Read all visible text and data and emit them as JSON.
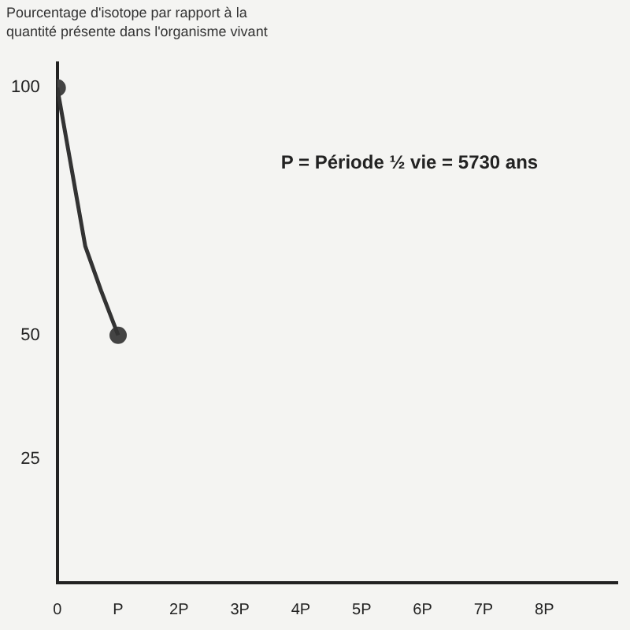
{
  "chart_data": {
    "type": "line",
    "ylabel": "Pourcentage d'isotope par rapport à la quantité présente dans l'organisme vivant",
    "annotations": [
      "P = Période ½ vie = 5730 ans"
    ],
    "xlim": [
      0,
      9.2
    ],
    "xticks": [
      {
        "value": 0,
        "label": "0"
      },
      {
        "value": 1,
        "label": "P"
      },
      {
        "value": 2,
        "label": "2P"
      },
      {
        "value": 3,
        "label": "3P"
      },
      {
        "value": 4,
        "label": "4P"
      },
      {
        "value": 5,
        "label": "5P"
      },
      {
        "value": 6,
        "label": "6P"
      },
      {
        "value": 7,
        "label": "7P"
      },
      {
        "value": 8,
        "label": "8P"
      }
    ],
    "ylim": [
      0,
      105
    ],
    "yticks": [
      25,
      50,
      100
    ],
    "grid": false,
    "legend": false,
    "series": [
      {
        "color": "#333333",
        "x": [
          0,
          0.46,
          0.72,
          1
        ],
        "values": [
          100,
          68,
          59,
          50
        ],
        "marker": "none"
      },
      {
        "type": "scatter",
        "color": "#444444",
        "x": [
          0,
          1
        ],
        "values": [
          100,
          50
        ],
        "marker": "circle"
      }
    ]
  }
}
